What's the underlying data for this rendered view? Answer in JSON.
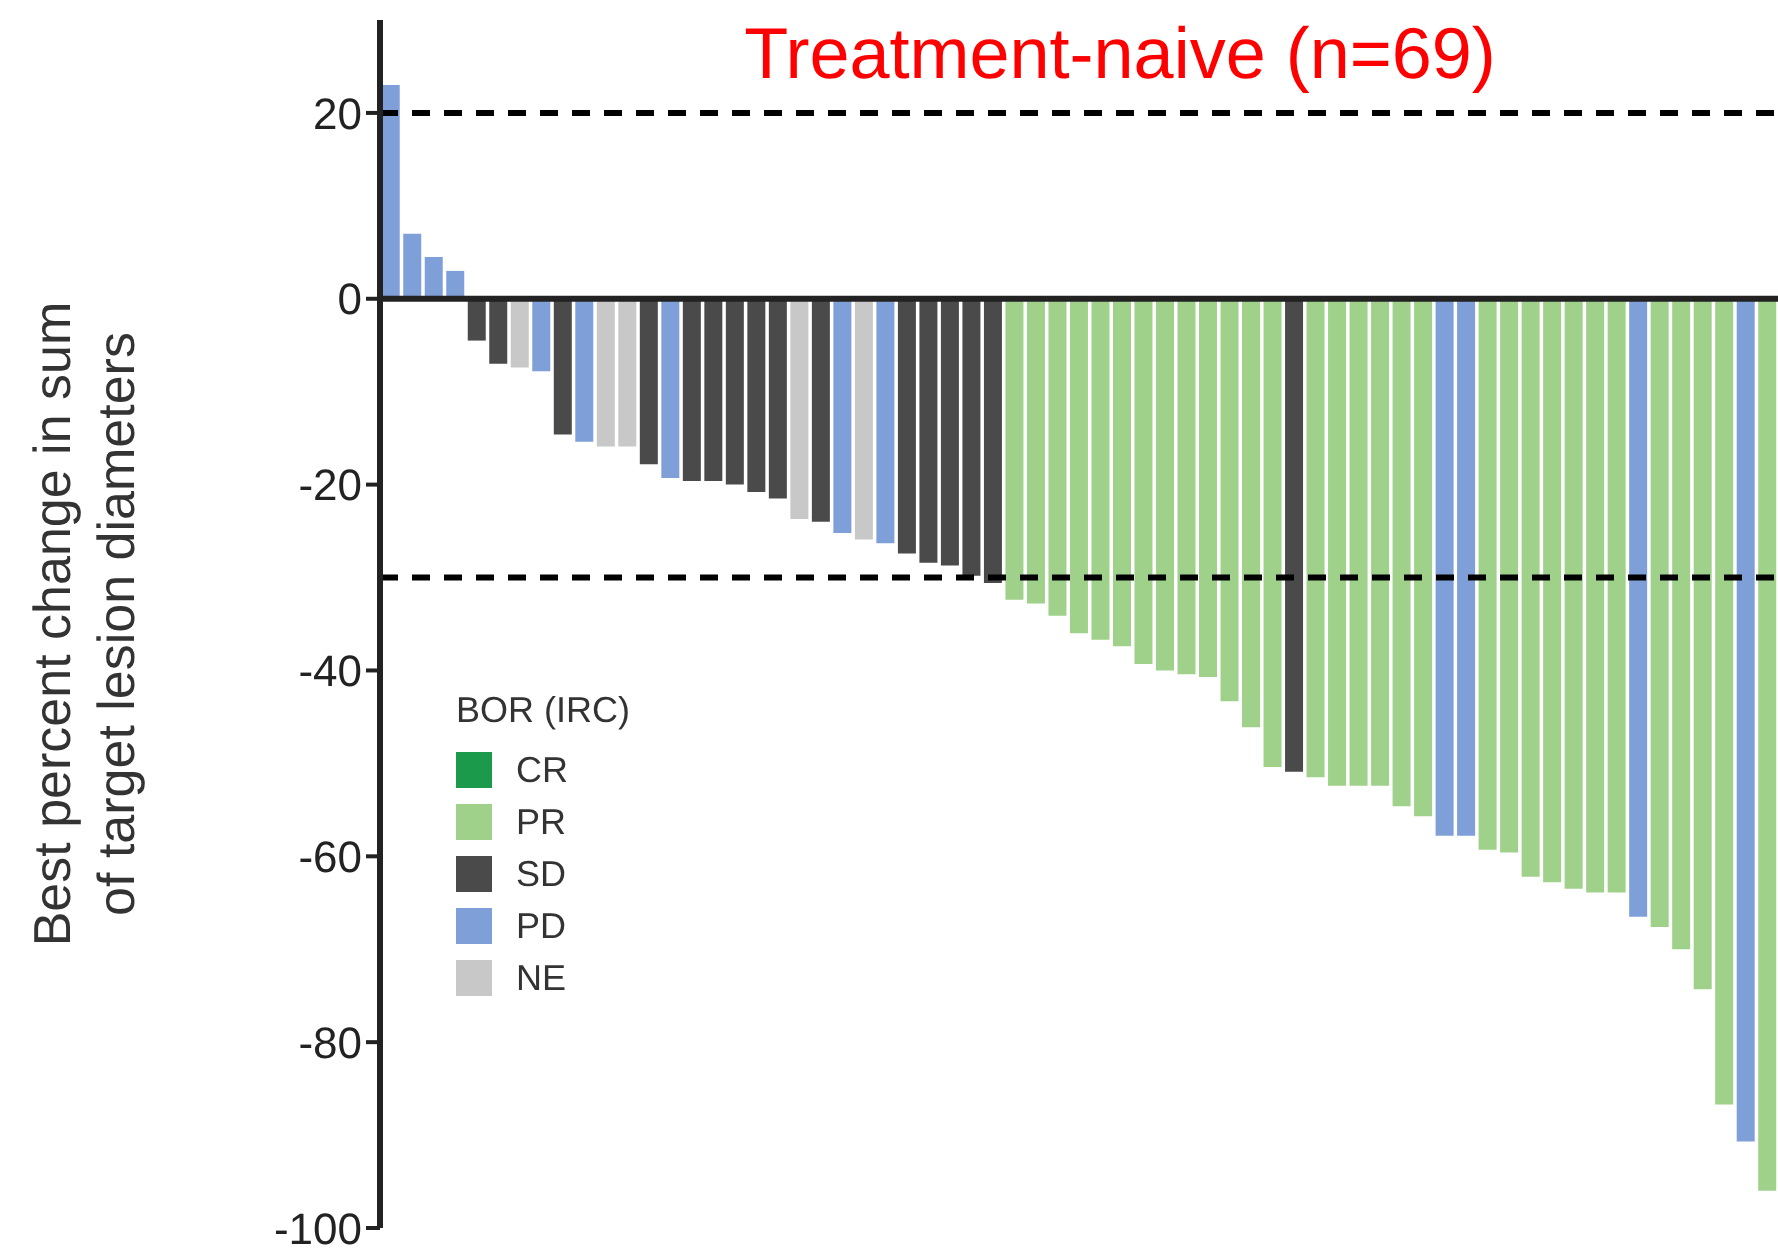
{
  "chart_data": {
    "type": "bar",
    "title": "Treatment-naive (n=69)",
    "ylabel": "Best percent change in sum of target lesion diameters",
    "legend_title": "BOR (IRC)",
    "legend": "bottom left",
    "tick_labels": "y",
    "ylim": [
      -100,
      30
    ],
    "yticks": [
      -100,
      -80,
      -60,
      -40,
      -20,
      0,
      20
    ],
    "categories": [
      null,
      null,
      null,
      null,
      null,
      null,
      null,
      null,
      null,
      null,
      null,
      null,
      null,
      null,
      null,
      null,
      null,
      null,
      null,
      null,
      null,
      null,
      null,
      null,
      null,
      null,
      null,
      null,
      null,
      null,
      null,
      null,
      null,
      null,
      null,
      null,
      null,
      null,
      null,
      null,
      null,
      null,
      null,
      null,
      null,
      null,
      null,
      null,
      null,
      null,
      null,
      null,
      null,
      null,
      null,
      null,
      null,
      null,
      null,
      null,
      null,
      null,
      null,
      null,
      null
    ],
    "stacked": true,
    "series": [
      {
        "name": "CR",
        "color": "#1a9a4a",
        "values": [
          null,
          null,
          null,
          null,
          null,
          null,
          null,
          null,
          null,
          null,
          null,
          null,
          null,
          null,
          null,
          null,
          null,
          null,
          null,
          null,
          null,
          null,
          null,
          null,
          null,
          null,
          null,
          null,
          null,
          null,
          null,
          null,
          null,
          null,
          null,
          null,
          null,
          null,
          null,
          null,
          null,
          null,
          null,
          null,
          null,
          null,
          null,
          null,
          null,
          null,
          null,
          null,
          null,
          null,
          null,
          null,
          null,
          null,
          null,
          null,
          null,
          null,
          null,
          null,
          null
        ]
      },
      {
        "name": "PR",
        "color": "#9fd18a",
        "values": [
          null,
          null,
          null,
          null,
          null,
          null,
          null,
          null,
          null,
          null,
          null,
          null,
          null,
          null,
          null,
          null,
          null,
          null,
          null,
          null,
          null,
          null,
          null,
          null,
          null,
          null,
          null,
          null,
          null,
          -32.4,
          -32.8,
          -34.1,
          -36,
          -36.7,
          -37.4,
          -39.3,
          -40,
          -40.4,
          -40.7,
          -43.3,
          -46.1,
          -50.4,
          null,
          -51.5,
          -52.4,
          -52.4,
          -52.4,
          -54.6,
          -55.7,
          null,
          null,
          -59.3,
          -59.6,
          -62.2,
          -62.8,
          -63.5,
          -63.9,
          -63.9,
          null,
          -67.6,
          -70,
          -74.3,
          -86.7,
          null,
          -96
        ]
      },
      {
        "name": "SD",
        "color": "#4a4a4a",
        "values": [
          null,
          null,
          null,
          null,
          -4.5,
          -7,
          null,
          null,
          -14.6,
          null,
          null,
          null,
          -17.8,
          null,
          -19.6,
          -19.6,
          -20,
          -20.8,
          -21.5,
          null,
          -24,
          null,
          null,
          null,
          -27.4,
          -28.4,
          -28.7,
          -29.8,
          -30.6,
          null,
          null,
          null,
          null,
          null,
          null,
          null,
          null,
          null,
          null,
          null,
          null,
          null,
          -50.9,
          null,
          null,
          null,
          null,
          null,
          null,
          null,
          null,
          null,
          null,
          null,
          null,
          null,
          null,
          null,
          null,
          null,
          null,
          null,
          null,
          null,
          null
        ]
      },
      {
        "name": "PD",
        "color": "#7f9fd8",
        "values": [
          23,
          7,
          4.5,
          3,
          null,
          null,
          null,
          -7.8,
          null,
          -15.4,
          null,
          null,
          null,
          -19.3,
          null,
          null,
          null,
          null,
          null,
          null,
          null,
          -25.2,
          null,
          -26.3,
          null,
          null,
          null,
          null,
          null,
          null,
          null,
          null,
          null,
          null,
          null,
          null,
          null,
          null,
          null,
          null,
          null,
          null,
          null,
          null,
          null,
          null,
          null,
          null,
          null,
          -57.8,
          -57.8,
          null,
          null,
          null,
          null,
          null,
          null,
          null,
          -66.5,
          null,
          null,
          null,
          null,
          -90.7,
          null
        ]
      },
      {
        "name": "NE",
        "color": "#c8c8c8",
        "values": [
          null,
          null,
          null,
          null,
          null,
          null,
          -7.4,
          null,
          null,
          null,
          -15.9,
          -15.9,
          null,
          null,
          null,
          null,
          null,
          null,
          null,
          -23.7,
          null,
          null,
          -25.9,
          null,
          null,
          null,
          null,
          null,
          null,
          null,
          null,
          null,
          null,
          null,
          null,
          null,
          null,
          null,
          null,
          null,
          null,
          null,
          null,
          null,
          null,
          null,
          null,
          null,
          null,
          null,
          null,
          null,
          null,
          null,
          null,
          null,
          null,
          null,
          null,
          null,
          null,
          null,
          null,
          null,
          null
        ]
      }
    ],
    "ref_lines": [
      {
        "axis": "y",
        "value": 20,
        "line_style": "dashed",
        "color": "#000000"
      },
      {
        "axis": "y",
        "value": -30,
        "line_style": "dashed",
        "color": "#000000"
      }
    ]
  }
}
